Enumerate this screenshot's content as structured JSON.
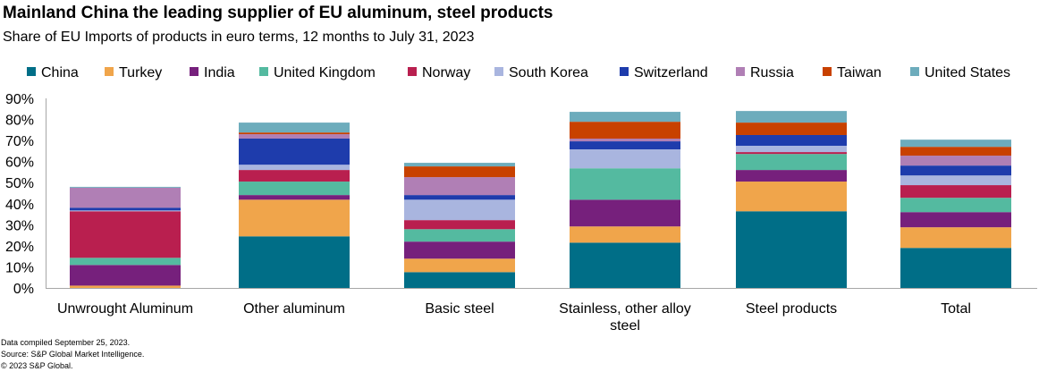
{
  "title": "Mainland China the leading supplier of EU aluminum, steel products",
  "subtitle": "Share of EU Imports of products in euro terms, 12 months to July 31, 2023",
  "footnotes": [
    "Data compiled September 25, 2023.",
    "Source: S&P Global Market Intelligence.",
    "© 2023 S&P Global."
  ],
  "chart_data": {
    "type": "bar",
    "stacked": true,
    "categories": [
      "Unwrought Aluminum",
      "Other aluminum",
      "Basic steel",
      "Stainless, other alloy steel",
      "Steel products",
      "Total"
    ],
    "ylim": [
      0,
      90
    ],
    "yticks": [
      "0%",
      "10%",
      "20%",
      "30%",
      "40%",
      "50%",
      "60%",
      "70%",
      "80%",
      "90%"
    ],
    "grid": false,
    "legend_position": "top",
    "series": [
      {
        "name": "China",
        "color": "#006E87",
        "values": [
          0,
          24.5,
          7.5,
          21.5,
          36.4,
          19.0
        ]
      },
      {
        "name": "Turkey",
        "color": "#F0A54B",
        "values": [
          1.1,
          17.4,
          6.4,
          7.7,
          14.1,
          9.8
        ]
      },
      {
        "name": "India",
        "color": "#76207C",
        "values": [
          9.8,
          2.2,
          8.1,
          12.7,
          5.5,
          7.2
        ]
      },
      {
        "name": "United Kingdom",
        "color": "#54BAA0",
        "values": [
          3.4,
          6.4,
          5.9,
          14.9,
          7.6,
          6.8
        ]
      },
      {
        "name": "Norway",
        "color": "#B91F4F",
        "values": [
          22.1,
          5.5,
          4.3,
          0,
          0.9,
          6.0
        ]
      },
      {
        "name": "South Korea",
        "color": "#A9B5DF",
        "values": [
          0.4,
          2.5,
          9.7,
          9.0,
          3.0,
          4.6
        ]
      },
      {
        "name": "Switzerland",
        "color": "#1E3CAC",
        "values": [
          1.3,
          12.4,
          2.2,
          3.8,
          5.1,
          4.7
        ]
      },
      {
        "name": "Russia",
        "color": "#B07FB5",
        "values": [
          9.5,
          2.1,
          8.5,
          1.3,
          0,
          4.7
        ]
      },
      {
        "name": "Taiwan",
        "color": "#C84100",
        "values": [
          0,
          0.8,
          5.1,
          8.0,
          5.9,
          4.2
        ]
      },
      {
        "name": "United States",
        "color": "#6DACBC",
        "values": [
          0.4,
          4.7,
          1.7,
          4.7,
          5.5,
          3.4
        ]
      }
    ]
  }
}
